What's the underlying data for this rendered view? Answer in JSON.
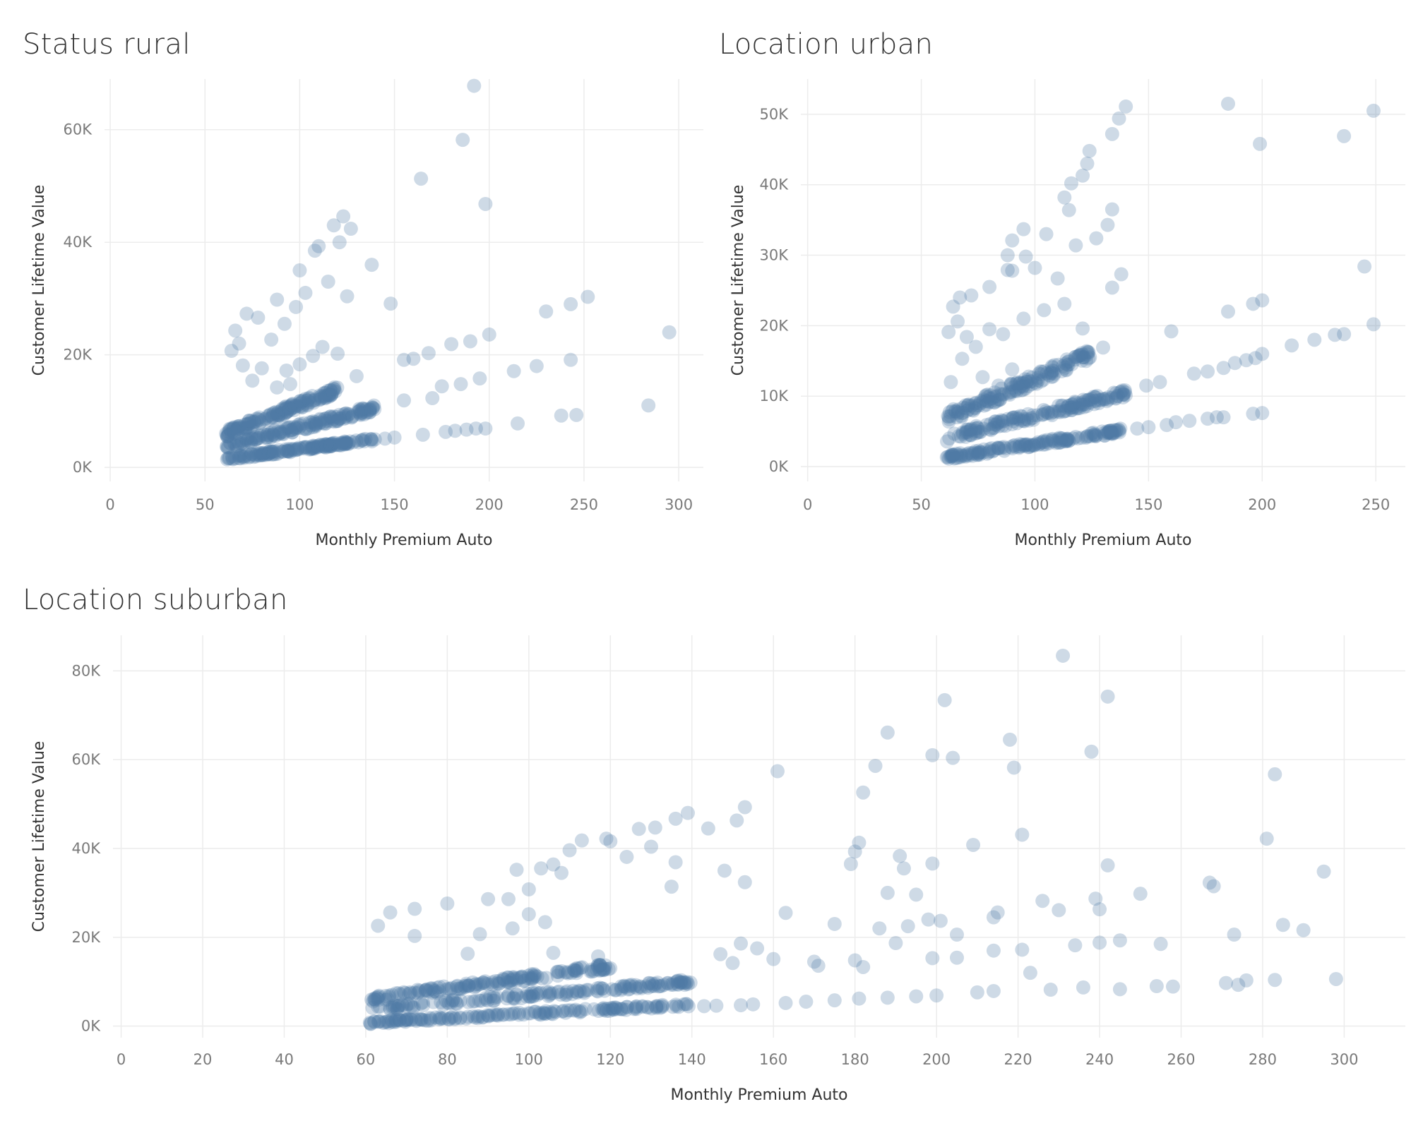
{
  "colors": {
    "point": "#4e79a7",
    "grid": "#ececec",
    "axis_text": "#7a7a7a",
    "title": "#333333"
  },
  "chart_data": [
    {
      "type": "scatter",
      "title": "Status rural",
      "xlabel": "Monthly Premium Auto",
      "ylabel": "Customer Lifetime Value",
      "xlim": [
        -3,
        313
      ],
      "ylim": [
        -2500,
        69000
      ],
      "xticks": [
        0,
        50,
        100,
        150,
        200,
        250,
        300
      ],
      "xtick_labels": [
        "0",
        "50",
        "100",
        "150",
        "200",
        "250",
        "300"
      ],
      "yticks": [
        0,
        20000,
        40000,
        60000
      ],
      "ytick_labels": [
        "0K",
        "20K",
        "40K",
        "60K"
      ],
      "grid": true,
      "bands": [
        {
          "x0": 61,
          "x1": 140,
          "y0": 1500,
          "y1": 5000
        },
        {
          "x0": 61,
          "x1": 140,
          "y0": 3800,
          "y1": 10500
        },
        {
          "x0": 61,
          "x1": 120,
          "y0": 6000,
          "y1": 13800
        }
      ],
      "points": [
        [
          192,
          67800
        ],
        [
          186,
          58200
        ],
        [
          164,
          51300
        ],
        [
          198,
          46800
        ],
        [
          123,
          44600
        ],
        [
          118,
          43000
        ],
        [
          127,
          42400
        ],
        [
          121,
          40000
        ],
        [
          110,
          39300
        ],
        [
          108,
          38500
        ],
        [
          138,
          36000
        ],
        [
          100,
          35000
        ],
        [
          115,
          33000
        ],
        [
          103,
          31000
        ],
        [
          125,
          30400
        ],
        [
          148,
          29100
        ],
        [
          88,
          29800
        ],
        [
          252,
          30300
        ],
        [
          243,
          29000
        ],
        [
          230,
          27700
        ],
        [
          200,
          23600
        ],
        [
          190,
          22400
        ],
        [
          180,
          21900
        ],
        [
          168,
          20300
        ],
        [
          160,
          19300
        ],
        [
          155,
          19100
        ],
        [
          243,
          19100
        ],
        [
          225,
          18000
        ],
        [
          213,
          17100
        ],
        [
          175,
          14400
        ],
        [
          185,
          14800
        ],
        [
          195,
          15800
        ],
        [
          170,
          12300
        ],
        [
          155,
          11900
        ],
        [
          295,
          24000
        ],
        [
          284,
          11000
        ],
        [
          246,
          9300
        ],
        [
          238,
          9200
        ],
        [
          215,
          7800
        ],
        [
          198,
          6900
        ],
        [
          193,
          6900
        ],
        [
          188,
          6700
        ],
        [
          182,
          6500
        ],
        [
          177,
          6300
        ],
        [
          165,
          5800
        ],
        [
          150,
          5300
        ],
        [
          145,
          5100
        ],
        [
          72,
          27300
        ],
        [
          78,
          26600
        ],
        [
          85,
          22700
        ],
        [
          68,
          22000
        ],
        [
          64,
          20700
        ],
        [
          70,
          18100
        ],
        [
          80,
          17600
        ],
        [
          93,
          17200
        ],
        [
          100,
          18300
        ],
        [
          107,
          19800
        ],
        [
          112,
          21400
        ],
        [
          120,
          20200
        ],
        [
          130,
          16200
        ],
        [
          95,
          14800
        ],
        [
          88,
          14200
        ],
        [
          75,
          15400
        ],
        [
          66,
          24300
        ],
        [
          92,
          25500
        ],
        [
          98,
          28500
        ]
      ]
    },
    {
      "type": "scatter",
      "title": "Location urban",
      "xlabel": "Monthly Premium Auto",
      "ylabel": "Customer Lifetime Value",
      "xlim": [
        -3,
        263
      ],
      "ylim": [
        -2100,
        55000
      ],
      "xticks": [
        0,
        50,
        100,
        150,
        200,
        250
      ],
      "xtick_labels": [
        "0",
        "50",
        "100",
        "150",
        "200",
        "250"
      ],
      "yticks": [
        0,
        10000,
        20000,
        30000,
        40000,
        50000
      ],
      "ytick_labels": [
        "0K",
        "10K",
        "20K",
        "30K",
        "40K",
        "50K"
      ],
      "grid": true,
      "bands": [
        {
          "x0": 61,
          "x1": 140,
          "y0": 1300,
          "y1": 5200
        },
        {
          "x0": 61,
          "x1": 140,
          "y0": 4100,
          "y1": 10500
        },
        {
          "x0": 61,
          "x1": 125,
          "y0": 6900,
          "y1": 16000
        }
      ],
      "points": [
        [
          185,
          51500
        ],
        [
          249,
          50500
        ],
        [
          140,
          51100
        ],
        [
          137,
          49400
        ],
        [
          134,
          47200
        ],
        [
          236,
          46900
        ],
        [
          199,
          45800
        ],
        [
          124,
          44800
        ],
        [
          123,
          43000
        ],
        [
          121,
          41300
        ],
        [
          116,
          40200
        ],
        [
          113,
          38200
        ],
        [
          134,
          36500
        ],
        [
          115,
          36400
        ],
        [
          132,
          34300
        ],
        [
          105,
          33000
        ],
        [
          95,
          33700
        ],
        [
          90,
          32100
        ],
        [
          127,
          32400
        ],
        [
          118,
          31400
        ],
        [
          88,
          30000
        ],
        [
          100,
          28200
        ],
        [
          96,
          29800
        ],
        [
          110,
          26700
        ],
        [
          90,
          27800
        ],
        [
          80,
          25500
        ],
        [
          72,
          24300
        ],
        [
          67,
          24000
        ],
        [
          64,
          22700
        ],
        [
          66,
          20600
        ],
        [
          62,
          19100
        ],
        [
          70,
          18400
        ],
        [
          74,
          17000
        ],
        [
          80,
          19500
        ],
        [
          86,
          18800
        ],
        [
          95,
          21000
        ],
        [
          104,
          22200
        ],
        [
          113,
          23100
        ],
        [
          121,
          19600
        ],
        [
          130,
          16900
        ],
        [
          138,
          27300
        ],
        [
          134,
          25400
        ],
        [
          245,
          28400
        ],
        [
          200,
          23600
        ],
        [
          196,
          23100
        ],
        [
          185,
          22000
        ],
        [
          249,
          20200
        ],
        [
          236,
          18800
        ],
        [
          232,
          18700
        ],
        [
          223,
          18000
        ],
        [
          213,
          17200
        ],
        [
          200,
          16000
        ],
        [
          197,
          15400
        ],
        [
          193,
          15100
        ],
        [
          188,
          14700
        ],
        [
          183,
          14000
        ],
        [
          176,
          13500
        ],
        [
          170,
          13200
        ],
        [
          160,
          19200
        ],
        [
          155,
          12000
        ],
        [
          149,
          11500
        ],
        [
          200,
          7600
        ],
        [
          196,
          7500
        ],
        [
          183,
          7000
        ],
        [
          180,
          7000
        ],
        [
          176,
          6800
        ],
        [
          168,
          6500
        ],
        [
          162,
          6300
        ],
        [
          158,
          5900
        ],
        [
          150,
          5600
        ],
        [
          145,
          5400
        ],
        [
          88,
          27900
        ],
        [
          63,
          12000
        ],
        [
          68,
          15300
        ],
        [
          77,
          12700
        ],
        [
          84,
          11500
        ],
        [
          90,
          13800
        ]
      ]
    },
    {
      "type": "scatter",
      "title": "Location suburban",
      "xlabel": "Monthly Premium Auto",
      "ylabel": "Customer Lifetime Value",
      "xlim": [
        -2,
        315
      ],
      "ylim": [
        -2600,
        88000
      ],
      "xticks": [
        0,
        20,
        40,
        60,
        80,
        100,
        120,
        140,
        160,
        180,
        200,
        220,
        240,
        260,
        280,
        300
      ],
      "xtick_labels": [
        "0",
        "20",
        "40",
        "60",
        "80",
        "100",
        "120",
        "140",
        "160",
        "180",
        "200",
        "220",
        "240",
        "260",
        "280",
        "300"
      ],
      "yticks": [
        0,
        20000,
        40000,
        60000,
        80000
      ],
      "ytick_labels": [
        "0K",
        "20K",
        "40K",
        "60K",
        "80K"
      ],
      "grid": true,
      "bands": [
        {
          "x0": 61,
          "x1": 140,
          "y0": 800,
          "y1": 4800
        },
        {
          "x0": 61,
          "x1": 140,
          "y0": 3800,
          "y1": 10000
        },
        {
          "x0": 61,
          "x1": 120,
          "y0": 6000,
          "y1": 13500
        }
      ],
      "points": [
        [
          231,
          83400
        ],
        [
          242,
          74200
        ],
        [
          202,
          73400
        ],
        [
          188,
          66100
        ],
        [
          218,
          64500
        ],
        [
          199,
          61000
        ],
        [
          238,
          61800
        ],
        [
          204,
          60400
        ],
        [
          185,
          58600
        ],
        [
          219,
          58200
        ],
        [
          161,
          57400
        ],
        [
          283,
          56700
        ],
        [
          182,
          52600
        ],
        [
          153,
          49300
        ],
        [
          139,
          48000
        ],
        [
          151,
          46300
        ],
        [
          131,
          44700
        ],
        [
          144,
          44500
        ],
        [
          127,
          44400
        ],
        [
          136,
          46700
        ],
        [
          119,
          42200
        ],
        [
          113,
          41800
        ],
        [
          181,
          41300
        ],
        [
          281,
          42200
        ],
        [
          221,
          43100
        ],
        [
          209,
          40800
        ],
        [
          130,
          40400
        ],
        [
          180,
          39300
        ],
        [
          110,
          39600
        ],
        [
          191,
          38300
        ],
        [
          124,
          38100
        ],
        [
          179,
          36500
        ],
        [
          199,
          36600
        ],
        [
          106,
          36400
        ],
        [
          242,
          36200
        ],
        [
          103,
          35500
        ],
        [
          148,
          35000
        ],
        [
          192,
          35500
        ],
        [
          295,
          34800
        ],
        [
          136,
          36900
        ],
        [
          97,
          35200
        ],
        [
          267,
          32300
        ],
        [
          268,
          31500
        ],
        [
          135,
          31400
        ],
        [
          153,
          32400
        ],
        [
          188,
          30000
        ],
        [
          250,
          29800
        ],
        [
          195,
          29600
        ],
        [
          239,
          28700
        ],
        [
          226,
          28200
        ],
        [
          240,
          26300
        ],
        [
          230,
          26100
        ],
        [
          214,
          24500
        ],
        [
          215,
          25600
        ],
        [
          201,
          23700
        ],
        [
          193,
          22500
        ],
        [
          175,
          23000
        ],
        [
          186,
          22000
        ],
        [
          163,
          25500
        ],
        [
          190,
          18700
        ],
        [
          205,
          20600
        ],
        [
          285,
          22800
        ],
        [
          290,
          21600
        ],
        [
          273,
          20600
        ],
        [
          240,
          18800
        ],
        [
          234,
          18200
        ],
        [
          245,
          19300
        ],
        [
          255,
          18500
        ],
        [
          221,
          17200
        ],
        [
          214,
          17000
        ],
        [
          205,
          15400
        ],
        [
          199,
          15300
        ],
        [
          180,
          14800
        ],
        [
          170,
          14500
        ],
        [
          160,
          15100
        ],
        [
          156,
          17500
        ],
        [
          152,
          18600
        ],
        [
          147,
          16200
        ],
        [
          150,
          14200
        ],
        [
          171,
          13600
        ],
        [
          182,
          13300
        ],
        [
          223,
          12000
        ],
        [
          198,
          24000
        ],
        [
          298,
          10600
        ],
        [
          283,
          10400
        ],
        [
          276,
          10300
        ],
        [
          271,
          9700
        ],
        [
          274,
          9300
        ],
        [
          258,
          8900
        ],
        [
          254,
          9000
        ],
        [
          245,
          8300
        ],
        [
          236,
          8700
        ],
        [
          228,
          8200
        ],
        [
          214,
          7900
        ],
        [
          210,
          7600
        ],
        [
          200,
          6900
        ],
        [
          195,
          6700
        ],
        [
          188,
          6400
        ],
        [
          181,
          6200
        ],
        [
          175,
          5800
        ],
        [
          168,
          5500
        ],
        [
          163,
          5200
        ],
        [
          155,
          4900
        ],
        [
          152,
          4700
        ],
        [
          146,
          4600
        ],
        [
          143,
          4500
        ],
        [
          120,
          41600
        ],
        [
          108,
          34500
        ],
        [
          100,
          30800
        ],
        [
          95,
          28600
        ],
        [
          90,
          28600
        ],
        [
          80,
          27600
        ],
        [
          72,
          26400
        ],
        [
          66,
          25600
        ],
        [
          63,
          22600
        ],
        [
          100,
          25200
        ],
        [
          104,
          23400
        ],
        [
          96,
          22000
        ],
        [
          88,
          20700
        ],
        [
          72,
          20300
        ],
        [
          85,
          16300
        ],
        [
          106,
          16500
        ],
        [
          117,
          15700
        ]
      ]
    }
  ]
}
